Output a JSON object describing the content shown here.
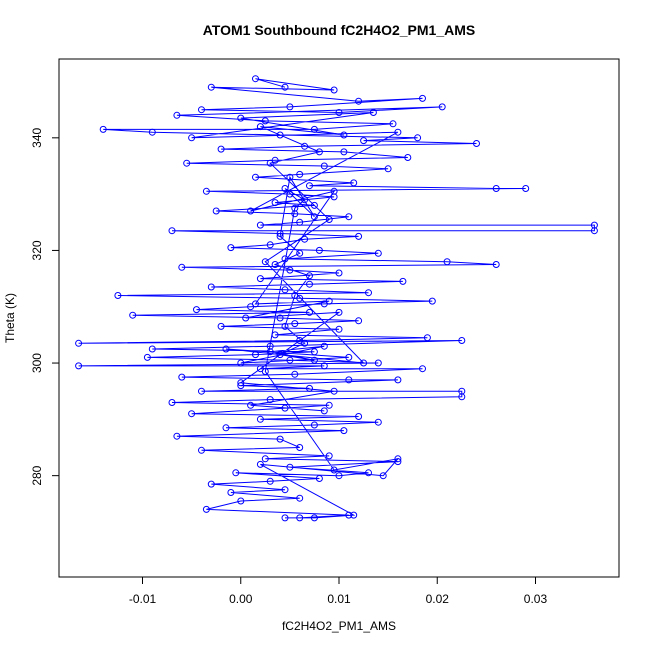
{
  "chart_data": {
    "type": "scatter",
    "title": "ATOM1 Southbound fC2H4O2_PM1_AMS",
    "xlabel": "fC2H4O2_PM1_AMS",
    "ylabel": "Theta (K)",
    "xlim": [
      -0.0185,
      0.0385
    ],
    "ylim": [
      262,
      354
    ],
    "x_ticks": [
      -0.01,
      0.0,
      0.01,
      0.02,
      0.03
    ],
    "x_tick_labels": [
      "-0.01",
      "0.00",
      "0.01",
      "0.02",
      "0.03"
    ],
    "y_ticks": [
      280,
      300,
      320,
      340
    ],
    "y_tick_labels": [
      "280",
      "300",
      "320",
      "340"
    ],
    "grid": false,
    "series": [
      {
        "color": "#0000ff",
        "marker": "open-circle",
        "connected": true,
        "points": [
          [
            0.0045,
            349.0
          ],
          [
            0.0015,
            350.5
          ],
          [
            0.0095,
            348.5
          ],
          [
            -0.003,
            349.0
          ],
          [
            0.012,
            346.5
          ],
          [
            0.0185,
            347.0
          ],
          [
            0.005,
            345.5
          ],
          [
            -0.004,
            345.0
          ],
          [
            0.01,
            344.5
          ],
          [
            0.0205,
            345.5
          ],
          [
            -0.0065,
            344.0
          ],
          [
            0.0025,
            343.0
          ],
          [
            0.0155,
            342.5
          ],
          [
            0.0075,
            341.5
          ],
          [
            -0.014,
            341.5
          ],
          [
            -0.009,
            341.0
          ],
          [
            0.004,
            340.5
          ],
          [
            0.018,
            340.0
          ],
          [
            0.0125,
            339.5
          ],
          [
            0.024,
            339.0
          ],
          [
            0.0065,
            338.5
          ],
          [
            -0.002,
            338.0
          ],
          [
            0.0105,
            337.5
          ],
          [
            0.017,
            336.5
          ],
          [
            0.0035,
            336.0
          ],
          [
            -0.0055,
            335.5
          ],
          [
            0.0085,
            335.0
          ],
          [
            0.015,
            334.5
          ],
          [
            0.006,
            333.5
          ],
          [
            0.0015,
            333.0
          ],
          [
            0.0115,
            332.0
          ],
          [
            0.007,
            331.5
          ],
          [
            0.026,
            331.0
          ],
          [
            0.029,
            331.0
          ],
          [
            -0.0035,
            330.5
          ],
          [
            0.005,
            330.0
          ],
          [
            0.0095,
            329.5
          ],
          [
            0.0035,
            328.5
          ],
          [
            0.0075,
            328.0
          ],
          [
            -0.0025,
            327.0
          ],
          [
            0.0055,
            326.5
          ],
          [
            0.011,
            326.0
          ],
          [
            0.006,
            325.0
          ],
          [
            0.002,
            324.5
          ],
          [
            0.036,
            324.5
          ],
          [
            0.036,
            323.5
          ],
          [
            -0.007,
            323.5
          ],
          [
            0.004,
            323.0
          ],
          [
            0.012,
            322.5
          ],
          [
            0.0065,
            322.0
          ],
          [
            0.003,
            321.0
          ],
          [
            -0.001,
            320.5
          ],
          [
            0.008,
            320.0
          ],
          [
            0.014,
            319.5
          ],
          [
            0.0045,
            318.5
          ],
          [
            0.021,
            318.0
          ],
          [
            0.026,
            317.5
          ],
          [
            -0.006,
            317.0
          ],
          [
            0.005,
            316.5
          ],
          [
            0.01,
            316.0
          ],
          [
            0.002,
            315.0
          ],
          [
            0.0165,
            314.5
          ],
          [
            0.007,
            314.0
          ],
          [
            -0.003,
            313.5
          ],
          [
            0.0045,
            313.0
          ],
          [
            0.013,
            312.5
          ],
          [
            -0.0125,
            312.0
          ],
          [
            0.006,
            311.5
          ],
          [
            0.0195,
            311.0
          ],
          [
            0.0085,
            310.5
          ],
          [
            0.001,
            310.0
          ],
          [
            -0.0045,
            309.5
          ],
          [
            0.007,
            309.0
          ],
          [
            -0.011,
            308.5
          ],
          [
            0.004,
            308.0
          ],
          [
            0.012,
            307.5
          ],
          [
            0.0055,
            307.0
          ],
          [
            -0.002,
            306.5
          ],
          [
            0.01,
            306.0
          ],
          [
            0.0035,
            305.0
          ],
          [
            0.019,
            304.5
          ],
          [
            0.006,
            304.0
          ],
          [
            -0.0165,
            303.5
          ],
          [
            0.0225,
            304.0
          ],
          [
            0.003,
            303.0
          ],
          [
            -0.009,
            302.5
          ],
          [
            0.0075,
            302.0
          ],
          [
            0.0015,
            301.5
          ],
          [
            -0.0095,
            301.0
          ],
          [
            0.005,
            300.5
          ],
          [
            0.014,
            300.0
          ],
          [
            -0.0165,
            299.5
          ],
          [
            0.0085,
            299.5
          ],
          [
            0.002,
            299.0
          ],
          [
            0.0185,
            299.0
          ],
          [
            0.0055,
            298.0
          ],
          [
            -0.006,
            297.5
          ],
          [
            0.011,
            297.0
          ],
          [
            0.016,
            297.0
          ],
          [
            0.0,
            296.0
          ],
          [
            0.007,
            295.5
          ],
          [
            -0.004,
            295.0
          ],
          [
            0.0225,
            295.0
          ],
          [
            0.0225,
            294.0
          ],
          [
            0.003,
            293.5
          ],
          [
            -0.007,
            293.0
          ],
          [
            0.009,
            292.5
          ],
          [
            0.0045,
            292.0
          ],
          [
            -0.005,
            291.0
          ],
          [
            0.012,
            290.5
          ],
          [
            0.002,
            290.0
          ],
          [
            0.014,
            289.5
          ],
          [
            0.0075,
            289.0
          ],
          [
            -0.0015,
            288.5
          ],
          [
            0.0105,
            288.0
          ],
          [
            -0.0065,
            287.0
          ],
          [
            0.004,
            286.5
          ],
          [
            0.006,
            285.0
          ],
          [
            -0.004,
            284.5
          ],
          [
            0.009,
            283.5
          ],
          [
            0.0025,
            283.0
          ],
          [
            0.016,
            282.5
          ],
          [
            0.005,
            281.5
          ],
          [
            0.013,
            280.5
          ],
          [
            0.01,
            280.0
          ],
          [
            -0.0005,
            280.5
          ],
          [
            0.008,
            279.5
          ],
          [
            0.003,
            279.0
          ],
          [
            -0.003,
            278.5
          ],
          [
            0.0045,
            277.5
          ],
          [
            -0.001,
            277.0
          ],
          [
            0.006,
            276.0
          ],
          [
            0.0,
            275.5
          ],
          [
            -0.0035,
            274.0
          ],
          [
            0.011,
            273.0
          ],
          [
            0.006,
            272.5
          ],
          [
            0.0045,
            272.5
          ],
          [
            0.0075,
            272.5
          ],
          [
            0.0115,
            273.0
          ],
          [
            0.002,
            282.0
          ],
          [
            0.0145,
            280.0
          ],
          [
            0.016,
            283.0
          ],
          [
            0.0095,
            281.0
          ],
          [
            0.0025,
            298.5
          ],
          [
            0.0055,
            327.5
          ],
          [
            0.0065,
            329.0
          ],
          [
            0.0045,
            331.0
          ],
          [
            0.0075,
            326.0
          ],
          [
            0.005,
            333.0
          ],
          [
            0.004,
            322.5
          ],
          [
            0.006,
            319.5
          ],
          [
            0.0035,
            317.5
          ],
          [
            0.007,
            315.5
          ],
          [
            0.0055,
            312.0
          ],
          [
            0.0045,
            306.5
          ],
          [
            0.0065,
            303.5
          ],
          [
            0.004,
            301.5
          ],
          [
            0.0075,
            300.5
          ],
          [
            0.003,
            302.0
          ],
          [
            0.0085,
            303.0
          ],
          [
            0.0,
            300.0
          ],
          [
            0.011,
            301.0
          ],
          [
            -0.0015,
            302.5
          ],
          [
            0.0125,
            300.0
          ],
          [
            0.0025,
            318.0
          ],
          [
            0.009,
            325.5
          ],
          [
            0.003,
            335.5
          ],
          [
            0.008,
            337.5
          ],
          [
            0.002,
            342.0
          ],
          [
            0.0105,
            340.5
          ],
          [
            0.0,
            343.5
          ],
          [
            0.0135,
            344.5
          ],
          [
            -0.005,
            340.0
          ],
          [
            0.016,
            341.0
          ],
          [
            0.001,
            327.0
          ],
          [
            0.0095,
            330.5
          ],
          [
            0.0015,
            310.5
          ],
          [
            0.009,
            311.0
          ],
          [
            0.0005,
            308.0
          ],
          [
            0.01,
            309.0
          ],
          [
            0.0,
            296.5
          ],
          [
            0.0095,
            295.0
          ],
          [
            0.001,
            292.5
          ],
          [
            0.0085,
            291.5
          ]
        ]
      }
    ]
  }
}
